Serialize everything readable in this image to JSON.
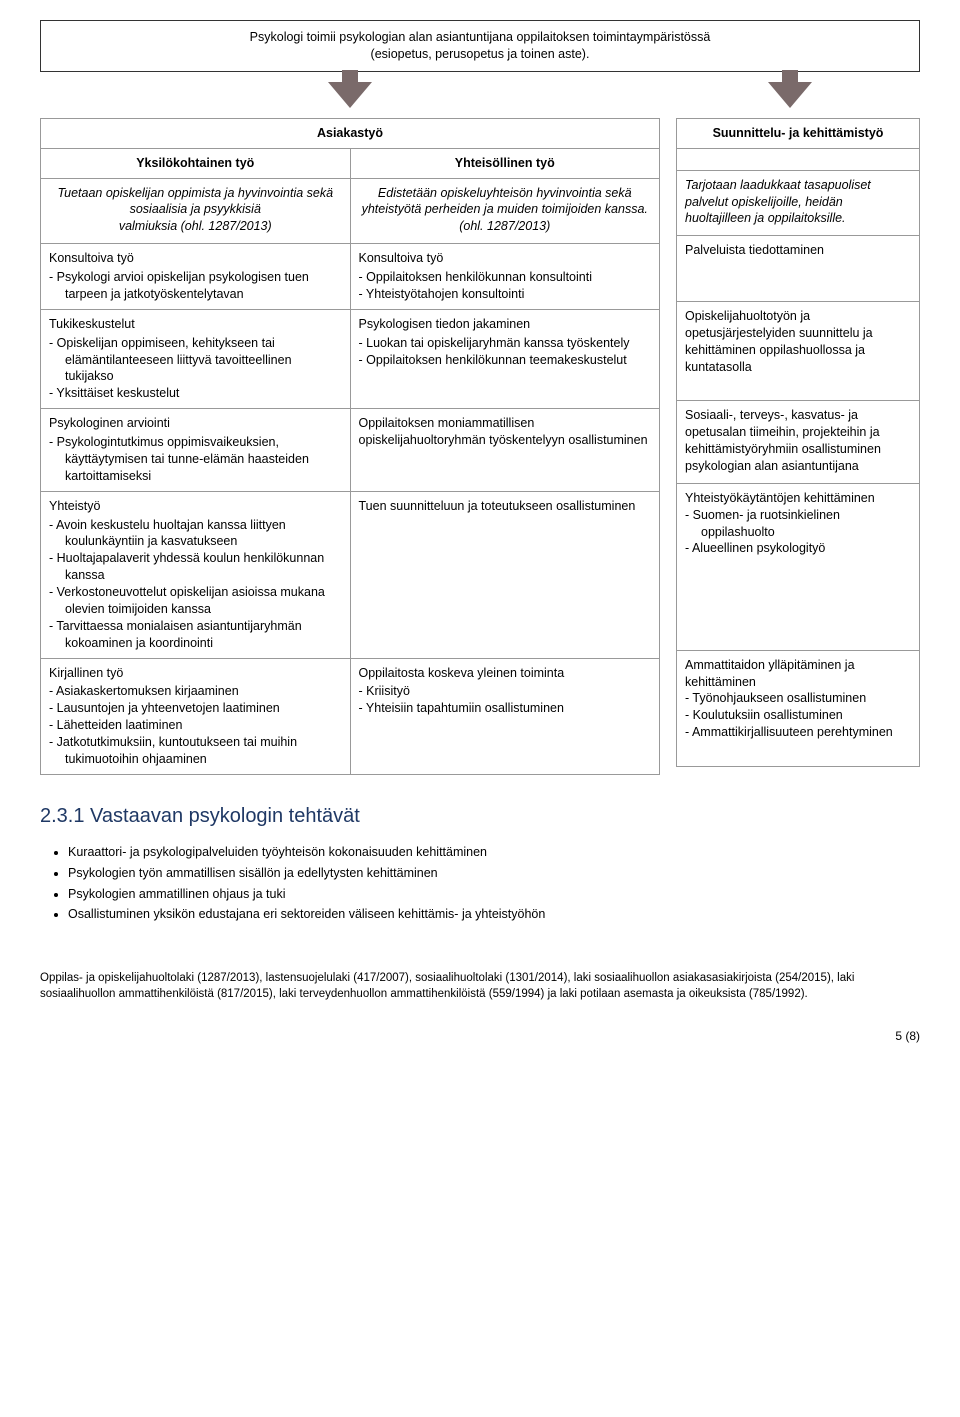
{
  "topBox": {
    "line1": "Psykologi toimii psykologian alan asiantuntijana oppilaitoksen toimintaympäristössä",
    "line2": "(esiopetus, perusopetus ja toinen aste)."
  },
  "mainTable": {
    "headerSpan": "Asiakastyö",
    "subHeaderLeft": "Yksilökohtainen työ",
    "subHeaderRight": "Yhteisöllinen työ",
    "rows": [
      {
        "left": {
          "intro_ital": "Tuetaan opiskelijan oppimista ja hyvinvointia sekä\nsosiaalisia ja psyykkisiä\nvalmiuksia (ohl. 1287/2013)"
        },
        "right": {
          "intro_ital": "Edistetään opiskeluyhteisön hyvinvointia sekä yhteistyötä perheiden ja muiden toimijoiden kanssa.\n(ohl. 1287/2013)"
        }
      },
      {
        "left": {
          "head": "Konsultoiva työ",
          "items": [
            "Psykologi arvioi opiskelijan psykologisen tuen tarpeen ja jatkotyöskentelytavan"
          ]
        },
        "right": {
          "head": "Konsultoiva työ",
          "items": [
            "Oppilaitoksen henkilökunnan konsultointi",
            "Yhteistyötahojen konsultointi"
          ]
        }
      },
      {
        "left": {
          "head": "Tukikeskustelut",
          "items": [
            "Opiskelijan oppimiseen, kehitykseen tai elämäntilanteeseen liittyvä tavoitteellinen tukijakso",
            "Yksittäiset keskustelut"
          ]
        },
        "right": {
          "head": "Psykologisen tiedon jakaminen",
          "items": [
            "Luokan tai opiskelijaryhmän kanssa työskentely",
            "Oppilaitoksen henkilökunnan teemakeskustelut"
          ]
        }
      },
      {
        "left": {
          "head": "Psykologinen arviointi",
          "items": [
            "Psykologintutkimus oppimisvaikeuksien, käyttäytymisen tai tunne-elämän haasteiden kartoittamiseksi"
          ]
        },
        "right": {
          "plain": "Oppilaitoksen moniammatillisen opiskelijahuoltoryhmän työskentelyyn osallistuminen"
        }
      },
      {
        "left": {
          "head": "Yhteistyö",
          "items": [
            "Avoin keskustelu huoltajan kanssa liittyen koulunkäyntiin ja kasvatukseen",
            "Huoltajapalaverit yhdessä koulun henkilökunnan kanssa",
            "Verkostoneuvottelut opiskelijan asioissa mukana olevien toimijoiden kanssa",
            "Tarvittaessa monialaisen asiantuntijaryhmän kokoaminen ja koordinointi"
          ]
        },
        "right": {
          "plain": "Tuen suunnitteluun ja toteutukseen osallistuminen"
        }
      },
      {
        "left": {
          "head": "Kirjallinen työ",
          "items": [
            "Asiakaskertomuksen kirjaaminen",
            "Lausuntojen ja yhteenvetojen laatiminen",
            "Lähetteiden laatiminen",
            "Jatkotutkimuksiin, kuntoutukseen tai muihin tukimuotoihin ohjaaminen"
          ]
        },
        "right": {
          "head": "Oppilaitosta koskeva yleinen toiminta",
          "items": [
            "Kriisityö",
            "Yhteisiin tapahtumiin osallistuminen"
          ]
        }
      }
    ]
  },
  "sideTable": {
    "header": "Suunnittelu- ja kehittämistyö",
    "rows": [
      {
        "ital": "Tarjotaan laadukkaat tasapuoliset palvelut opiskelijoille, heidän huoltajilleen ja oppilaitoksille."
      },
      {
        "plain": "Palveluista tiedottaminen"
      },
      {
        "plain": "Opiskelijahuoltotyön ja opetusjärjestelyiden suunnittelu ja kehittäminen oppilashuollossa ja kuntatasolla"
      },
      {
        "plain": "Sosiaali-, terveys-, kasvatus- ja opetusalan tiimeihin, projekteihin ja kehittämistyöryhmiin osallistuminen psykologian alan asiantuntijana"
      },
      {
        "head": "Yhteistyökäytäntöjen kehittäminen",
        "items": [
          "Suomen- ja ruotsinkielinen oppilashuolto",
          "Alueellinen psykologityö"
        ]
      },
      {
        "head": "Ammattitaidon ylläpitäminen ja kehittäminen",
        "items": [
          "Työnohjaukseen osallistuminen",
          "Koulutuksiin osallistuminen",
          "Ammattikirjallisuuteen perehtyminen"
        ]
      }
    ]
  },
  "section": {
    "title": "2.3.1  Vastaavan psykologin tehtävät",
    "bullets": [
      "Kuraattori- ja psykologipalveluiden työyhteisön kokonaisuuden kehittäminen",
      "Psykologien työn ammatillisen sisällön ja edellytysten kehittäminen",
      "Psykologien ammatillinen ohjaus ja tuki",
      "Osallistuminen yksikön edustajana eri sektoreiden väliseen kehittämis- ja yhteistyöhön"
    ]
  },
  "legal": "Oppilas- ja opiskelijahuoltolaki (1287/2013), lastensuojelulaki (417/2007), sosiaalihuoltolaki (1301/2014), laki sosiaalihuollon asiakasasiakirjoista (254/2015), laki sosiaalihuollon ammattihenkilöistä (817/2015), laki terveydenhuollon ammattihenkilöistä (559/1994) ja laki potilaan asemasta ja oikeuksista (785/1992).",
  "pageNum": "5 (8)"
}
